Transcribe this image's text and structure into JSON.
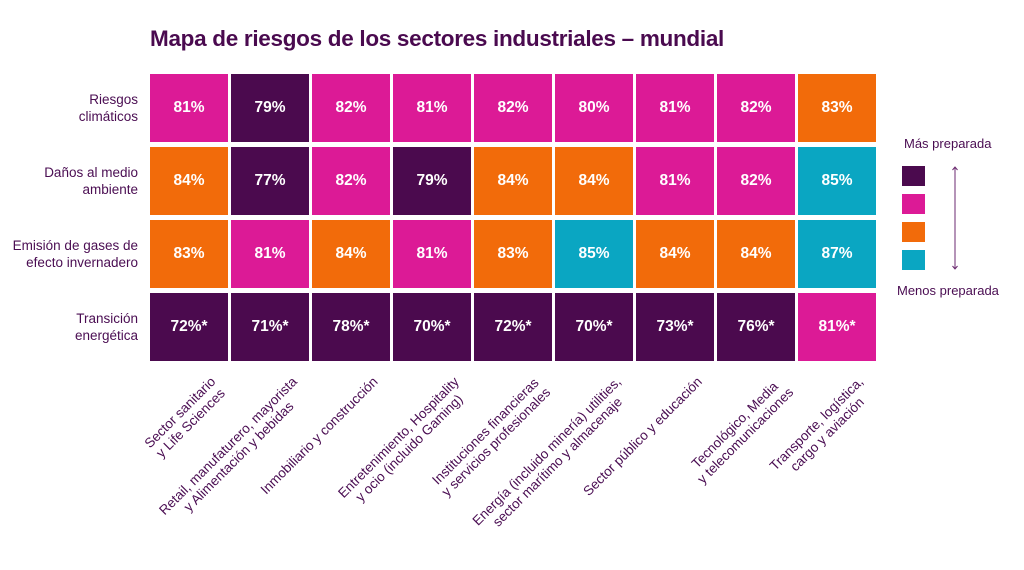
{
  "chart_data": {
    "type": "heatmap",
    "title": "Mapa de riesgos de los sectores industriales – mundial",
    "rows": [
      [
        "Riesgos",
        "climáticos"
      ],
      [
        "Daños al medio",
        "ambiente"
      ],
      [
        "Emisión de gases de",
        "efecto invernadero"
      ],
      [
        "Transición",
        "energética"
      ]
    ],
    "columns": [
      [
        "Sector sanitario",
        "y Life Sciences"
      ],
      [
        "Retail, manufaturero, mayorista",
        "y Alimentación y bebidas"
      ],
      [
        "Inmobiliario y construcción"
      ],
      [
        "Entretenimiento, Hospitality",
        "y ocio (incluido Gaming)"
      ],
      [
        "Instituciones financieras",
        "y servicios profesionales"
      ],
      [
        "Energía (incluido minería) utilities,",
        "sector marítimo y almacenaje"
      ],
      [
        "Sector público y educación"
      ],
      [
        "Tecnológico, Media",
        "y telecomunicaciones"
      ],
      [
        "Transporte, logística,",
        "cargo y aviación"
      ]
    ],
    "values": [
      [
        81,
        79,
        82,
        81,
        82,
        80,
        81,
        82,
        83
      ],
      [
        84,
        77,
        82,
        79,
        84,
        84,
        81,
        82,
        85
      ],
      [
        83,
        81,
        84,
        81,
        83,
        85,
        84,
        84,
        87
      ],
      [
        72,
        71,
        78,
        70,
        72,
        70,
        73,
        76,
        81
      ]
    ],
    "labels": [
      [
        "81%",
        "79%",
        "82%",
        "81%",
        "82%",
        "80%",
        "81%",
        "82%",
        "83%"
      ],
      [
        "84%",
        "77%",
        "82%",
        "79%",
        "84%",
        "84%",
        "81%",
        "82%",
        "85%"
      ],
      [
        "83%",
        "81%",
        "84%",
        "81%",
        "83%",
        "85%",
        "84%",
        "84%",
        "87%"
      ],
      [
        "72%*",
        "71%*",
        "78%*",
        "70%*",
        "72%*",
        "70%*",
        "73%*",
        "76%*",
        "81%*"
      ]
    ],
    "categories_grid": [
      [
        1,
        0,
        1,
        1,
        1,
        1,
        1,
        1,
        2
      ],
      [
        2,
        0,
        1,
        0,
        2,
        2,
        1,
        1,
        3
      ],
      [
        2,
        1,
        2,
        1,
        2,
        3,
        2,
        2,
        3
      ],
      [
        0,
        0,
        0,
        0,
        0,
        0,
        0,
        0,
        1
      ]
    ],
    "legend": {
      "top_label": "Más preparada",
      "bottom_label": "Menos preparada",
      "colors": [
        "#4b0a4e",
        "#dc1a96",
        "#f26b0a",
        "#0aa6c2"
      ]
    }
  }
}
